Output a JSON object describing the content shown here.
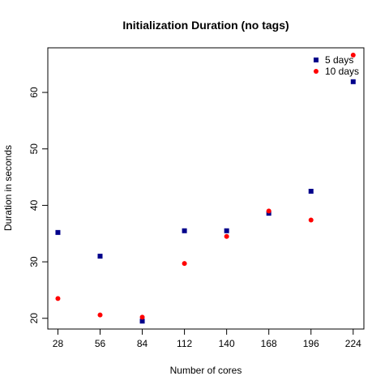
{
  "chart_data": {
    "type": "scatter",
    "title": "Initialization Duration (no tags)",
    "xlabel": "Number of cores",
    "ylabel": "Duration in seconds",
    "x": [
      28,
      56,
      84,
      112,
      140,
      168,
      196,
      224
    ],
    "x_tick_labels": [
      "28",
      "56",
      "84",
      "112",
      "140",
      "168",
      "196",
      "224"
    ],
    "y_ticks": [
      20,
      30,
      40,
      50,
      60
    ],
    "y_tick_labels": [
      "20",
      "30",
      "40",
      "50",
      "60"
    ],
    "xlim": [
      21.3,
      231.1
    ],
    "ylim": [
      18.1,
      67.9
    ],
    "grid": false,
    "legend_position": "top-right",
    "series": [
      {
        "name": "5 days",
        "marker": "square",
        "color": "#00008B",
        "values": [
          35.2,
          31.0,
          19.5,
          35.5,
          35.5,
          38.6,
          42.5,
          61.9
        ]
      },
      {
        "name": "10 days",
        "marker": "circle",
        "color": "#FF0000",
        "values": [
          23.5,
          20.6,
          20.2,
          29.7,
          34.5,
          39.0,
          37.4,
          66.6
        ]
      }
    ]
  }
}
